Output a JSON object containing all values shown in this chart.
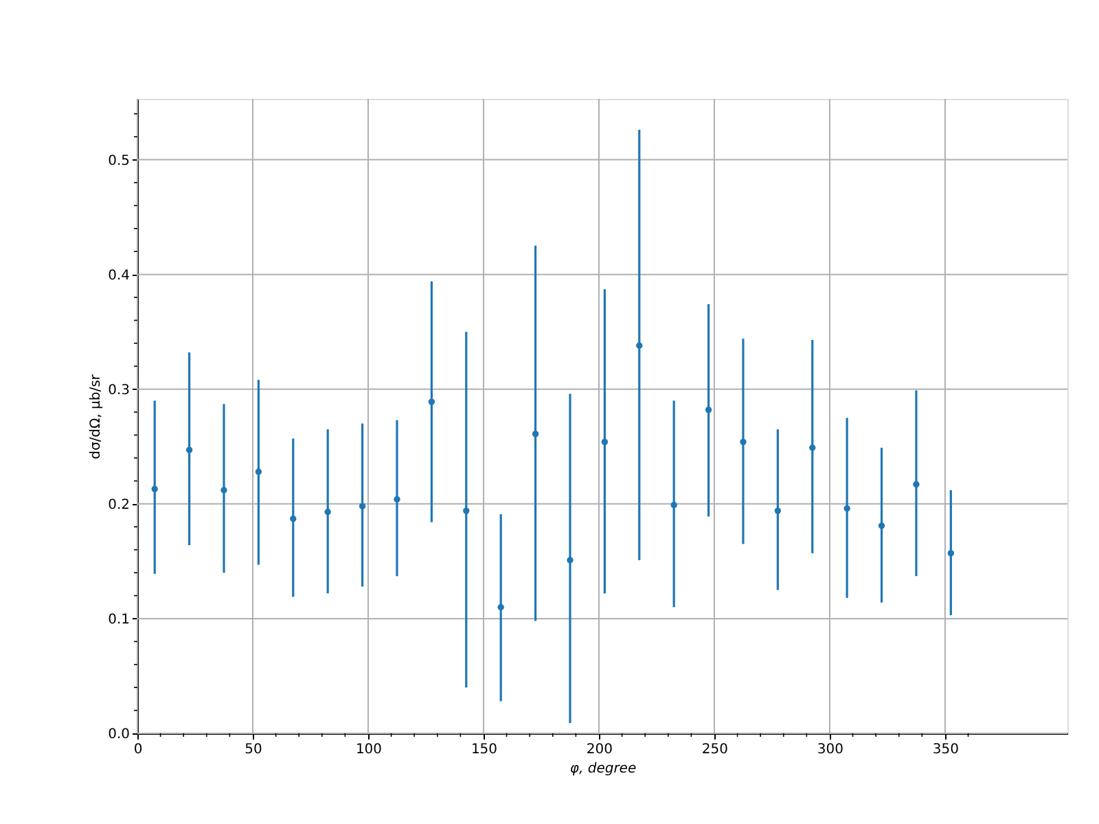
{
  "chart_data": {
    "type": "scatter",
    "xlabel": "φ, degree",
    "ylabel": "dσ/dΩ, μb/sr",
    "x": [
      7.5,
      22.5,
      37.5,
      52.5,
      67.5,
      82.5,
      97.5,
      112.5,
      127.5,
      142.5,
      157.5,
      172.5,
      187.5,
      202.5,
      217.5,
      232.5,
      247.5,
      262.5,
      277.5,
      292.5,
      307.5,
      322.5,
      337.5,
      352.5
    ],
    "series": [
      {
        "color": "#1f77b4",
        "values": [
          0.213,
          0.247,
          0.212,
          0.228,
          0.187,
          0.193,
          0.198,
          0.204,
          0.289,
          0.194,
          0.11,
          0.261,
          0.151,
          0.254,
          0.338,
          0.199,
          0.282,
          0.254,
          0.194,
          0.249,
          0.196,
          0.181,
          0.217,
          0.157
        ],
        "errors": [
          [
            0.139,
            0.29
          ],
          [
            0.164,
            0.332
          ],
          [
            0.14,
            0.287
          ],
          [
            0.147,
            0.308
          ],
          [
            0.119,
            0.257
          ],
          [
            0.122,
            0.265
          ],
          [
            0.128,
            0.27
          ],
          [
            0.137,
            0.273
          ],
          [
            0.184,
            0.394
          ],
          [
            0.04,
            0.35
          ],
          [
            0.028,
            0.191
          ],
          [
            0.098,
            0.425
          ],
          [
            0.009,
            0.296
          ],
          [
            0.122,
            0.387
          ],
          [
            0.151,
            0.526
          ],
          [
            0.11,
            0.29
          ],
          [
            0.189,
            0.374
          ],
          [
            0.165,
            0.344
          ],
          [
            0.125,
            0.265
          ],
          [
            0.157,
            0.343
          ],
          [
            0.118,
            0.275
          ],
          [
            0.114,
            0.249
          ],
          [
            0.137,
            0.299
          ],
          [
            0.103,
            0.212
          ]
        ]
      }
    ],
    "marker": "circle",
    "grid": true,
    "xlim": [
      0,
      403
    ],
    "xticks": [
      0,
      {
        "value": 10,
        "label": null
      },
      {
        "value": 20,
        "label": null
      },
      {
        "value": 30,
        "label": null
      },
      {
        "value": 40,
        "label": null
      },
      50,
      {
        "value": 60,
        "label": null
      },
      {
        "value": 70,
        "label": null
      },
      {
        "value": 80,
        "label": null
      },
      {
        "value": 90,
        "label": null
      },
      100,
      {
        "value": 110,
        "label": null
      },
      {
        "value": 120,
        "label": null
      },
      {
        "value": 130,
        "label": null
      },
      {
        "value": 140,
        "label": null
      },
      150,
      {
        "value": 160,
        "label": null
      },
      {
        "value": 170,
        "label": null
      },
      {
        "value": 180,
        "label": null
      },
      {
        "value": 190,
        "label": null
      },
      200,
      {
        "value": 210,
        "label": null
      },
      {
        "value": 220,
        "label": null
      },
      {
        "value": 230,
        "label": null
      },
      {
        "value": 240,
        "label": null
      },
      250,
      {
        "value": 260,
        "label": null
      },
      {
        "value": 270,
        "label": null
      },
      {
        "value": 280,
        "label": null
      },
      {
        "value": 290,
        "label": null
      },
      300,
      {
        "value": 310,
        "label": null
      },
      {
        "value": 320,
        "label": null
      },
      {
        "value": 330,
        "label": null
      },
      {
        "value": 340,
        "label": null
      },
      350,
      {
        "value": 360,
        "label": null
      }
    ],
    "ylim": [
      0,
      0.553
    ],
    "yticks": [
      {
        "value": 0,
        "label": "0.0"
      },
      {
        "value": 0.02,
        "label": null
      },
      {
        "value": 0.04,
        "label": null
      },
      {
        "value": 0.06,
        "label": null
      },
      {
        "value": 0.08,
        "label": null
      },
      0.1,
      {
        "value": 0.12,
        "label": null
      },
      {
        "value": 0.14,
        "label": null
      },
      {
        "value": 0.16,
        "label": null
      },
      {
        "value": 0.18,
        "label": null
      },
      0.2,
      {
        "value": 0.22,
        "label": null
      },
      {
        "value": 0.24,
        "label": null
      },
      {
        "value": 0.26,
        "label": null
      },
      {
        "value": 0.28,
        "label": null
      },
      0.3,
      {
        "value": 0.32,
        "label": null
      },
      {
        "value": 0.34,
        "label": null
      },
      {
        "value": 0.36,
        "label": null
      },
      {
        "value": 0.38,
        "label": null
      },
      0.4,
      {
        "value": 0.42,
        "label": null
      },
      {
        "value": 0.44,
        "label": null
      },
      {
        "value": 0.46,
        "label": null
      },
      {
        "value": 0.48,
        "label": null
      },
      0.5,
      {
        "value": 0.52,
        "label": null
      },
      {
        "value": 0.54,
        "label": null
      }
    ]
  }
}
